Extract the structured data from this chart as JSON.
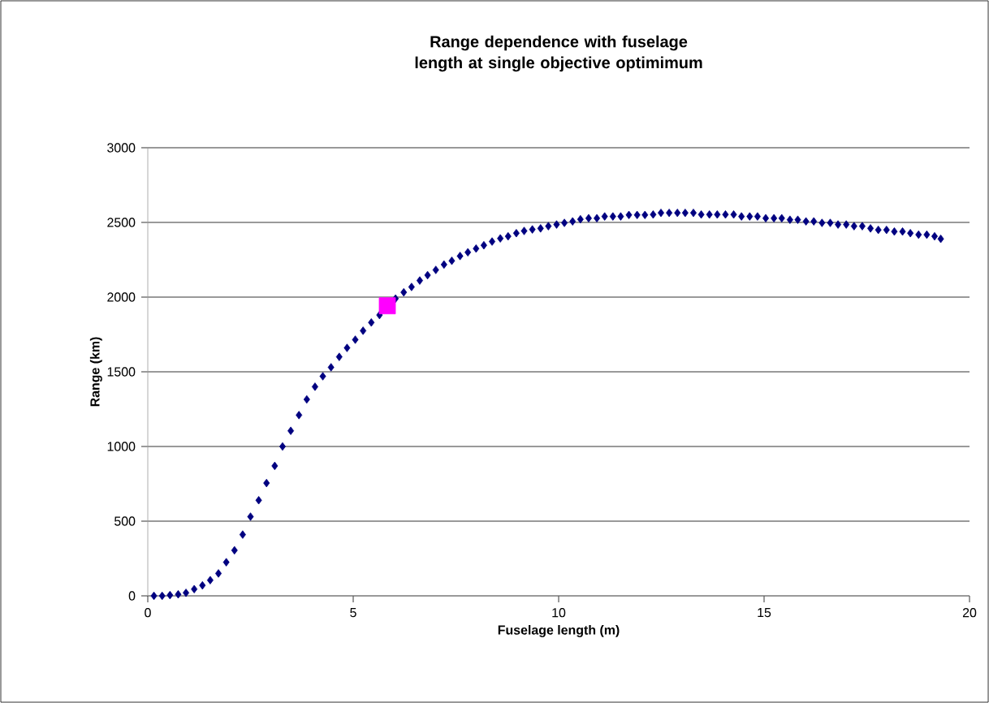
{
  "chart_data": {
    "type": "scatter",
    "title": "Range dependence with fuselage length at single objective optimimum",
    "xlabel": "Fuselage length (m)",
    "ylabel": "Range (km)",
    "xlim": [
      0,
      20
    ],
    "xticks": [
      0,
      5,
      10,
      15,
      20
    ],
    "ylim": [
      0,
      3000
    ],
    "yticks": [
      0,
      500,
      1000,
      1500,
      2000,
      2500,
      3000
    ],
    "grid": "y",
    "series": [
      {
        "color": "#000080",
        "marker": "diamond",
        "x": [
          0.15,
          0.35,
          0.54,
          0.74,
          0.93,
          1.13,
          1.33,
          1.52,
          1.72,
          1.91,
          2.11,
          2.31,
          2.5,
          2.7,
          2.89,
          3.09,
          3.28,
          3.48,
          3.68,
          3.87,
          4.07,
          4.26,
          4.46,
          4.66,
          4.85,
          5.05,
          5.24,
          5.44,
          5.64,
          5.83,
          6.03,
          6.23,
          6.42,
          6.62,
          6.81,
          7.01,
          7.21,
          7.4,
          7.6,
          7.79,
          7.99,
          8.18,
          8.38,
          8.58,
          8.77,
          8.97,
          9.16,
          9.36,
          9.56,
          9.75,
          9.95,
          10.14,
          10.34,
          10.53,
          10.73,
          10.93,
          11.12,
          11.32,
          11.51,
          11.71,
          11.91,
          12.1,
          12.3,
          12.49,
          12.69,
          12.89,
          13.08,
          13.28,
          13.47,
          13.67,
          13.86,
          14.06,
          14.26,
          14.45,
          14.65,
          14.84,
          15.04,
          15.24,
          15.43,
          15.63,
          15.82,
          16.02,
          16.21,
          16.41,
          16.61,
          16.8,
          17.0,
          17.19,
          17.39,
          17.59,
          17.78,
          17.98,
          18.17,
          18.37,
          18.56,
          18.76,
          18.96,
          19.15,
          19.3
        ],
        "values": [
          0,
          0,
          5,
          10,
          20,
          45,
          70,
          105,
          150,
          225,
          305,
          410,
          530,
          640,
          755,
          870,
          1000,
          1105,
          1210,
          1315,
          1400,
          1470,
          1530,
          1600,
          1660,
          1715,
          1775,
          1830,
          1880,
          null,
          1990,
          2032,
          2068,
          2111,
          2147,
          2182,
          2218,
          2243,
          2275,
          2300,
          2325,
          2347,
          2372,
          2393,
          2407,
          2428,
          2443,
          2453,
          2460,
          2475,
          2486,
          2497,
          2507,
          2521,
          2528,
          2528,
          2540,
          2540,
          2540,
          2550,
          2550,
          2550,
          2553,
          2564,
          2564,
          2564,
          2564,
          2564,
          2553,
          2553,
          2553,
          2553,
          2553,
          2540,
          2540,
          2540,
          2528,
          2528,
          2528,
          2518,
          2518,
          2507,
          2507,
          2497,
          2497,
          2486,
          2486,
          2475,
          2475,
          2460,
          2450,
          2450,
          2439,
          2439,
          2428,
          2418,
          2418,
          2407,
          2390
        ]
      },
      {
        "color": "#ff00ff",
        "marker": "square",
        "x": [
          5.83
        ],
        "values": [
          1942
        ]
      }
    ]
  }
}
